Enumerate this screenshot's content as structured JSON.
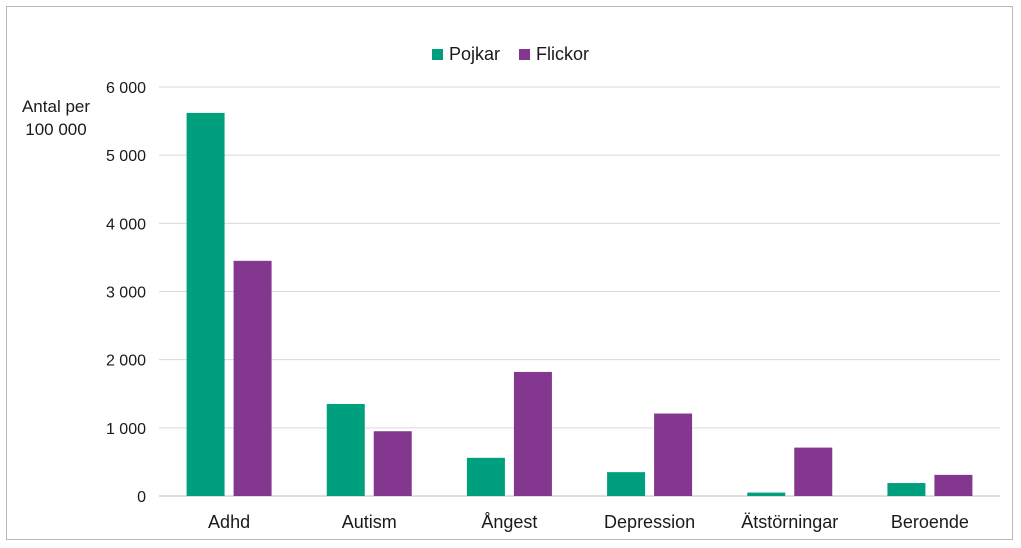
{
  "chart_data": {
    "type": "bar",
    "categories": [
      "Adhd",
      "Autism",
      "Ångest",
      "Depression",
      "Ätstörningar",
      "Beroende"
    ],
    "series": [
      {
        "name": "Pojkar",
        "color": "#00a07e",
        "values": [
          5620,
          1350,
          560,
          350,
          50,
          190
        ]
      },
      {
        "name": "Flickor",
        "color": "#84378e",
        "values": [
          3450,
          950,
          1820,
          1210,
          710,
          310
        ]
      }
    ],
    "ylabel": "Antal per 100 000",
    "ylim": [
      0,
      6000
    ],
    "yticks": [
      0,
      1000,
      2000,
      3000,
      4000,
      5000,
      6000
    ],
    "ytick_labels": [
      "0",
      "1 000",
      "2 000",
      "3 000",
      "4 000",
      "5 000",
      "6 000"
    ],
    "grid": true,
    "legend_position": "top-center"
  }
}
